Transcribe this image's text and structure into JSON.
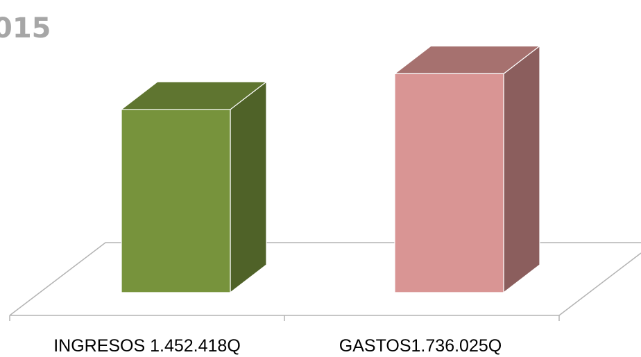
{
  "chart_data": {
    "type": "bar",
    "title": "015",
    "categories": [
      "INGRESOS 1.452.418Q",
      "GASTOS1.736.025Q"
    ],
    "values": [
      1452418,
      1736025
    ],
    "xlabel": "",
    "ylabel": "",
    "ylim": [
      0,
      1760000
    ],
    "grid": false,
    "legend": "none",
    "style": "3d-column"
  },
  "colors": {
    "series_front": [
      "#77933c",
      "#d99594"
    ],
    "series_top": [
      "#5f7530",
      "#a6716f"
    ],
    "series_side": [
      "#4f6228",
      "#8b5e5d"
    ],
    "title": "#a6a6a6",
    "floor_line": "#b3b3b3"
  }
}
